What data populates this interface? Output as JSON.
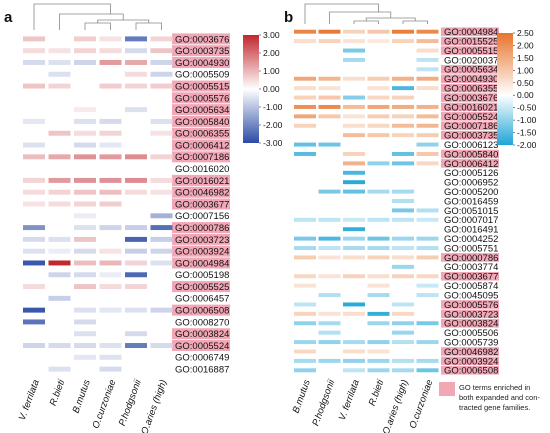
{
  "chart_data": [
    {
      "type": "heatmap",
      "panel": "a",
      "columns": [
        "V. ferrilata",
        "R.bieti",
        "B.mutus",
        "O.curzoniae",
        "P.hodgsonii",
        "O.aries (high)"
      ],
      "rows": [
        "GO:0003676",
        "GO:0003735",
        "GO:0004930",
        "GO:0005509",
        "GO:0005515",
        "GO:0005576",
        "GO:0005634",
        "GO:0005840",
        "GO:0006355",
        "GO:0006412",
        "GO:0007186",
        "GO:0016020",
        "GO:0016021",
        "GO:0046982",
        "GO:0003677",
        "GO:0007156",
        "GO:0000786",
        "GO:0003723",
        "GO:0003924",
        "GO:0004984",
        "GO:0005198",
        "GO:0005525",
        "GO:0006457",
        "GO:0006508",
        "GO:0008270",
        "GO:0003824",
        "GO:0005524",
        "GO:0006749",
        "GO:0016887"
      ],
      "highlighted": [
        "GO:0003676",
        "GO:0003735",
        "GO:0004930",
        "GO:0005515",
        "GO:0005576",
        "GO:0005634",
        "GO:0005840",
        "GO:0006355",
        "GO:0006412",
        "GO:0007186",
        "GO:0016021",
        "GO:0046982",
        "GO:0003677",
        "GO:0000786",
        "GO:0003723",
        "GO:0003924",
        "GO:0004984",
        "GO:0005525",
        "GO:0006508",
        "GO:0003824",
        "GO:0005524"
      ],
      "values": [
        [
          0.8,
          null,
          0.7,
          0.4,
          -2.2,
          0.6
        ],
        [
          0.5,
          0.4,
          0.6,
          0.5,
          -0.6,
          0.8
        ],
        [
          -0.6,
          -0.5,
          -0.7,
          1.4,
          1.2,
          -0.7
        ],
        [
          null,
          -0.5,
          null,
          null,
          0.5,
          -0.7
        ],
        [
          0.8,
          0.6,
          null,
          0.7,
          0.6,
          0.7
        ],
        [
          null,
          null,
          null,
          null,
          null,
          null
        ],
        [
          null,
          null,
          0.3,
          null,
          -0.5,
          null
        ],
        [
          -0.4,
          null,
          -0.5,
          -0.6,
          null,
          -0.5
        ],
        [
          null,
          0.8,
          0.5,
          0.6,
          null,
          0.4
        ],
        [
          -0.5,
          null,
          -0.6,
          -0.4,
          null,
          null
        ],
        [
          0.9,
          1.2,
          1.5,
          1.4,
          1.6,
          0.6
        ],
        [
          null,
          null,
          null,
          null,
          null,
          null
        ],
        [
          0.6,
          1.4,
          1.5,
          1.5,
          1.6,
          0.5
        ],
        [
          0.5,
          0.6,
          0.8,
          0.9,
          0.5,
          0.4
        ],
        [
          0.4,
          0.5,
          0.6,
          0.7,
          null,
          null
        ],
        [
          null,
          null,
          -0.3,
          null,
          null,
          -1.3
        ],
        [
          -1.8,
          null,
          -0.5,
          -0.7,
          -0.8,
          -2.4
        ],
        [
          -0.6,
          -0.5,
          0.8,
          null,
          -2.6,
          -0.8
        ],
        [
          -0.5,
          -0.3,
          -0.6,
          0.4,
          -0.8,
          -0.7
        ],
        [
          -2.8,
          3.0,
          0.9,
          1.0,
          0.6,
          -0.5
        ],
        [
          null,
          -0.7,
          -0.6,
          -0.3,
          -2.5,
          null
        ],
        [
          0.5,
          null,
          0.8,
          0.5,
          0.6,
          null
        ],
        [
          null,
          -0.8,
          null,
          null,
          null,
          null
        ],
        [
          -2.8,
          null,
          -0.5,
          -0.4,
          -0.5,
          -0.7
        ],
        [
          -2.3,
          null,
          -0.6,
          null,
          null,
          null
        ],
        [
          null,
          null,
          -0.5,
          null,
          -0.6,
          null
        ],
        [
          -0.7,
          -0.6,
          -0.6,
          -0.5,
          -2.2,
          -0.6
        ],
        [
          null,
          null,
          -0.4,
          -0.5,
          null,
          null
        ],
        [
          null,
          -0.5,
          null,
          -0.6,
          null,
          null
        ]
      ],
      "colorbar": {
        "min": -3.0,
        "max": 3.0,
        "ticks": [
          "3.00",
          "2.00",
          "1.00",
          "0.00",
          "-1.00",
          "-2.00",
          "-3.00"
        ],
        "colors": [
          "#2b4ba5",
          "#ffffff",
          "#c1272d"
        ]
      }
    },
    {
      "type": "heatmap",
      "panel": "b",
      "columns": [
        "B.mutus",
        "P.hodgsonii",
        "V. ferrilata",
        "R.bieti",
        "O.aries (high)",
        "O.curzoniae"
      ],
      "rows": [
        "GO:0004984",
        "GO:0015525",
        "GO:0005515",
        "GO:0020037",
        "GO:0005634",
        "GO:0004930",
        "GO:0006355",
        "GO:0003676",
        "GO:0016021",
        "GO:0005524",
        "GO:0007186",
        "GO:0003735",
        "GO:0006123",
        "GO:0005840",
        "GO:0006412",
        "GO:0005126",
        "GO:0006952",
        "GO:0005200",
        "GO:0016459",
        "GO:0051015",
        "GO:0007017",
        "GO:0016491",
        "GO:0004252",
        "GO:0005751",
        "GO:0000786",
        "GO:0003774",
        "GO:0003677",
        "GO:0005874",
        "GO:0045095",
        "GO:0005576",
        "GO:0003723",
        "GO:0003824",
        "GO:0005506",
        "GO:0005739",
        "GO:0046982",
        "GO:0003924",
        "GO:0006508"
      ],
      "highlighted": [
        "GO:0004984",
        "GO:0015525",
        "GO:0005515",
        "GO:0005634",
        "GO:0004930",
        "GO:0006355",
        "GO:0003676",
        "GO:0016021",
        "GO:0005524",
        "GO:0007186",
        "GO:0003735",
        "GO:0005840",
        "GO:0006412",
        "GO:0000786",
        "GO:0003677",
        "GO:0005576",
        "GO:0003723",
        "GO:0003824",
        "GO:0046982",
        "GO:0003924",
        "GO:0006508"
      ],
      "values": [
        [
          2.2,
          2.4,
          0.8,
          1.0,
          2.3,
          2.1
        ],
        [
          0.6,
          0.8,
          0.5,
          0.4,
          0.8,
          1.2
        ],
        [
          null,
          null,
          -1.2,
          null,
          null,
          0.6
        ],
        [
          null,
          null,
          -0.8,
          null,
          null,
          -0.6
        ],
        [
          null,
          null,
          null,
          null,
          null,
          -0.6
        ],
        [
          1.6,
          1.3,
          0.6,
          0.9,
          1.4,
          1.5
        ],
        [
          0.6,
          0.5,
          null,
          0.5,
          -1.6,
          0.6
        ],
        [
          0.8,
          1.0,
          -1.1,
          0.7,
          0.8,
          null
        ],
        [
          2.0,
          2.1,
          1.2,
          1.6,
          1.5,
          1.4
        ],
        [
          1.6,
          1.0,
          0.5,
          0.9,
          0.8,
          1.2
        ],
        [
          0.8,
          null,
          0.6,
          0.7,
          1.2,
          1.3
        ],
        [
          null,
          null,
          1.2,
          1.0,
          0.8,
          0.9
        ],
        [
          -1.4,
          -1.3,
          null,
          null,
          null,
          -1.0
        ],
        [
          -1.5,
          null,
          0.8,
          null,
          -1.4,
          1.0
        ],
        [
          null,
          null,
          1.4,
          -1.0,
          -1.3,
          0.7
        ],
        [
          null,
          null,
          -1.6,
          null,
          null,
          null
        ],
        [
          null,
          null,
          -1.9,
          null,
          null,
          null
        ],
        [
          null,
          -1.2,
          -1.4,
          -0.8,
          -0.8,
          null
        ],
        [
          null,
          null,
          null,
          null,
          -0.7,
          null
        ],
        [
          null,
          null,
          null,
          null,
          -1.2,
          -0.7
        ],
        [
          -0.6,
          -0.6,
          -0.5,
          -0.6,
          -0.6,
          -0.5
        ],
        [
          null,
          null,
          -1.8,
          null,
          null,
          null
        ],
        [
          -1.2,
          -1.6,
          -0.9,
          -1.3,
          -0.9,
          -0.9
        ],
        [
          -0.8,
          -0.6,
          -0.8,
          -0.8,
          -0.6,
          -0.7
        ],
        [
          0.9,
          0.5,
          0.6,
          0.8,
          0.6,
          0.9
        ],
        [
          null,
          null,
          null,
          null,
          -0.9,
          null
        ],
        [
          0.7,
          0.5,
          0.8,
          0.6,
          0.8,
          0.7
        ],
        [
          0.5,
          null,
          null,
          0.5,
          null,
          -0.5
        ],
        [
          null,
          -0.7,
          null,
          -0.8,
          null,
          -0.6
        ],
        [
          -0.6,
          null,
          -1.9,
          null,
          -0.6,
          null
        ],
        [
          0.8,
          0.5,
          0.6,
          -1.8,
          0.7,
          null
        ],
        [
          -1.0,
          -0.8,
          null,
          -0.9,
          -1.0,
          -1.2
        ],
        [
          null,
          -0.7,
          null,
          null,
          -0.9,
          null
        ],
        [
          -0.9,
          -1.0,
          -0.8,
          -1.0,
          -0.7,
          -0.9
        ],
        [
          0.7,
          null,
          0.6,
          0.5,
          null,
          null
        ],
        [
          -0.8,
          -0.9,
          -1.0,
          -0.9,
          -0.7,
          -0.8
        ],
        [
          -1.0,
          null,
          -0.6,
          -0.9,
          -0.8,
          -1.3
        ]
      ],
      "colorbar": {
        "min": -2.0,
        "max": 2.5,
        "ticks": [
          "2.50",
          "2.00",
          "1.50",
          "1.00",
          "0.50",
          "0.00",
          "-0.50",
          "-1.00",
          "-1.50",
          "-2.00"
        ],
        "colors": [
          "#1fa5d6",
          "#ffffff",
          "#e8742a"
        ]
      }
    }
  ],
  "legend": {
    "swatch_color": "#f2a7b6",
    "text_lines": [
      "GO terms enriched in",
      "both expanded and con-",
      "tracted gene families."
    ]
  },
  "panel_letters": [
    "a",
    "b"
  ],
  "highlight_color": "#f2a7b6"
}
